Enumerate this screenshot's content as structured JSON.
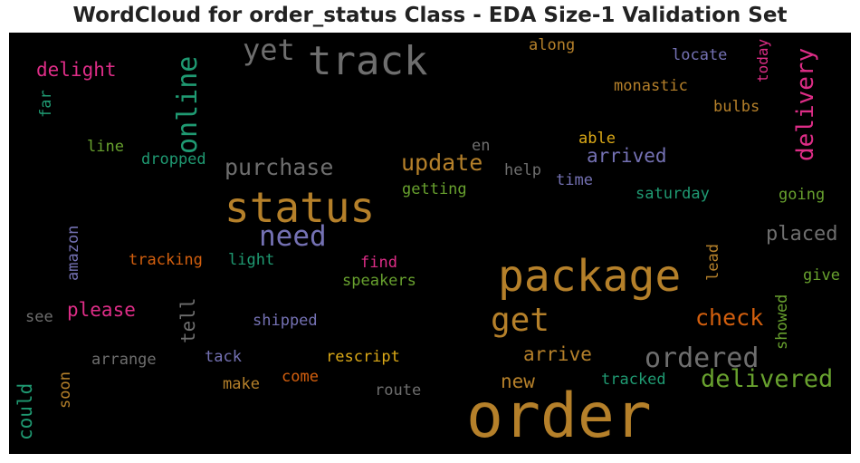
{
  "title": "WordCloud for order_status Class - EDA Size-1 Validation Set",
  "chart_data": {
    "type": "wordcloud",
    "colors": {
      "gold": "#b5802a",
      "grey": "#6e6e6e",
      "green": "#1f9a72",
      "purple": "#7471b3",
      "pink": "#de2d87",
      "orange": "#d35f0e",
      "lime": "#68a12e",
      "yellow": "#dba917"
    },
    "words": [
      {
        "text": "order",
        "color": "gold"
      },
      {
        "text": "package",
        "color": "gold"
      },
      {
        "text": "status",
        "color": "gold"
      },
      {
        "text": "track",
        "color": "grey"
      },
      {
        "text": "online",
        "color": "green"
      },
      {
        "text": "delivery",
        "color": "pink"
      },
      {
        "text": "yet",
        "color": "grey"
      },
      {
        "text": "get",
        "color": "gold"
      },
      {
        "text": "need",
        "color": "purple"
      },
      {
        "text": "ordered",
        "color": "grey"
      },
      {
        "text": "delivered",
        "color": "lime"
      },
      {
        "text": "check",
        "color": "orange"
      },
      {
        "text": "purchase",
        "color": "grey"
      },
      {
        "text": "update",
        "color": "gold"
      },
      {
        "text": "placed",
        "color": "grey"
      },
      {
        "text": "arrived",
        "color": "purple"
      },
      {
        "text": "arrive",
        "color": "gold"
      },
      {
        "text": "delight",
        "color": "pink"
      },
      {
        "text": "please",
        "color": "pink"
      },
      {
        "text": "could",
        "color": "green"
      },
      {
        "text": "tell",
        "color": "grey"
      },
      {
        "text": "new",
        "color": "gold"
      },
      {
        "text": "along",
        "color": "gold"
      },
      {
        "text": "locate",
        "color": "purple"
      },
      {
        "text": "today",
        "color": "pink"
      },
      {
        "text": "monastic",
        "color": "gold"
      },
      {
        "text": "bulbs",
        "color": "gold"
      },
      {
        "text": "able",
        "color": "yellow"
      },
      {
        "text": "en",
        "color": "grey"
      },
      {
        "text": "help",
        "color": "grey"
      },
      {
        "text": "time",
        "color": "purple"
      },
      {
        "text": "saturday",
        "color": "green"
      },
      {
        "text": "going",
        "color": "lime"
      },
      {
        "text": "getting",
        "color": "lime"
      },
      {
        "text": "line",
        "color": "lime"
      },
      {
        "text": "dropped",
        "color": "green"
      },
      {
        "text": "far",
        "color": "green"
      },
      {
        "text": "amazon",
        "color": "purple"
      },
      {
        "text": "tracking",
        "color": "orange"
      },
      {
        "text": "light",
        "color": "green"
      },
      {
        "text": "find",
        "color": "pink"
      },
      {
        "text": "speakers",
        "color": "lime"
      },
      {
        "text": "lead",
        "color": "gold"
      },
      {
        "text": "give",
        "color": "lime"
      },
      {
        "text": "see",
        "color": "grey"
      },
      {
        "text": "shipped",
        "color": "purple"
      },
      {
        "text": "showed",
        "color": "lime"
      },
      {
        "text": "arrange",
        "color": "grey"
      },
      {
        "text": "tack",
        "color": "purple"
      },
      {
        "text": "rescript",
        "color": "yellow"
      },
      {
        "text": "soon",
        "color": "gold"
      },
      {
        "text": "make",
        "color": "gold"
      },
      {
        "text": "come",
        "color": "orange"
      },
      {
        "text": "route",
        "color": "grey"
      },
      {
        "text": "tracked",
        "color": "green"
      }
    ]
  }
}
